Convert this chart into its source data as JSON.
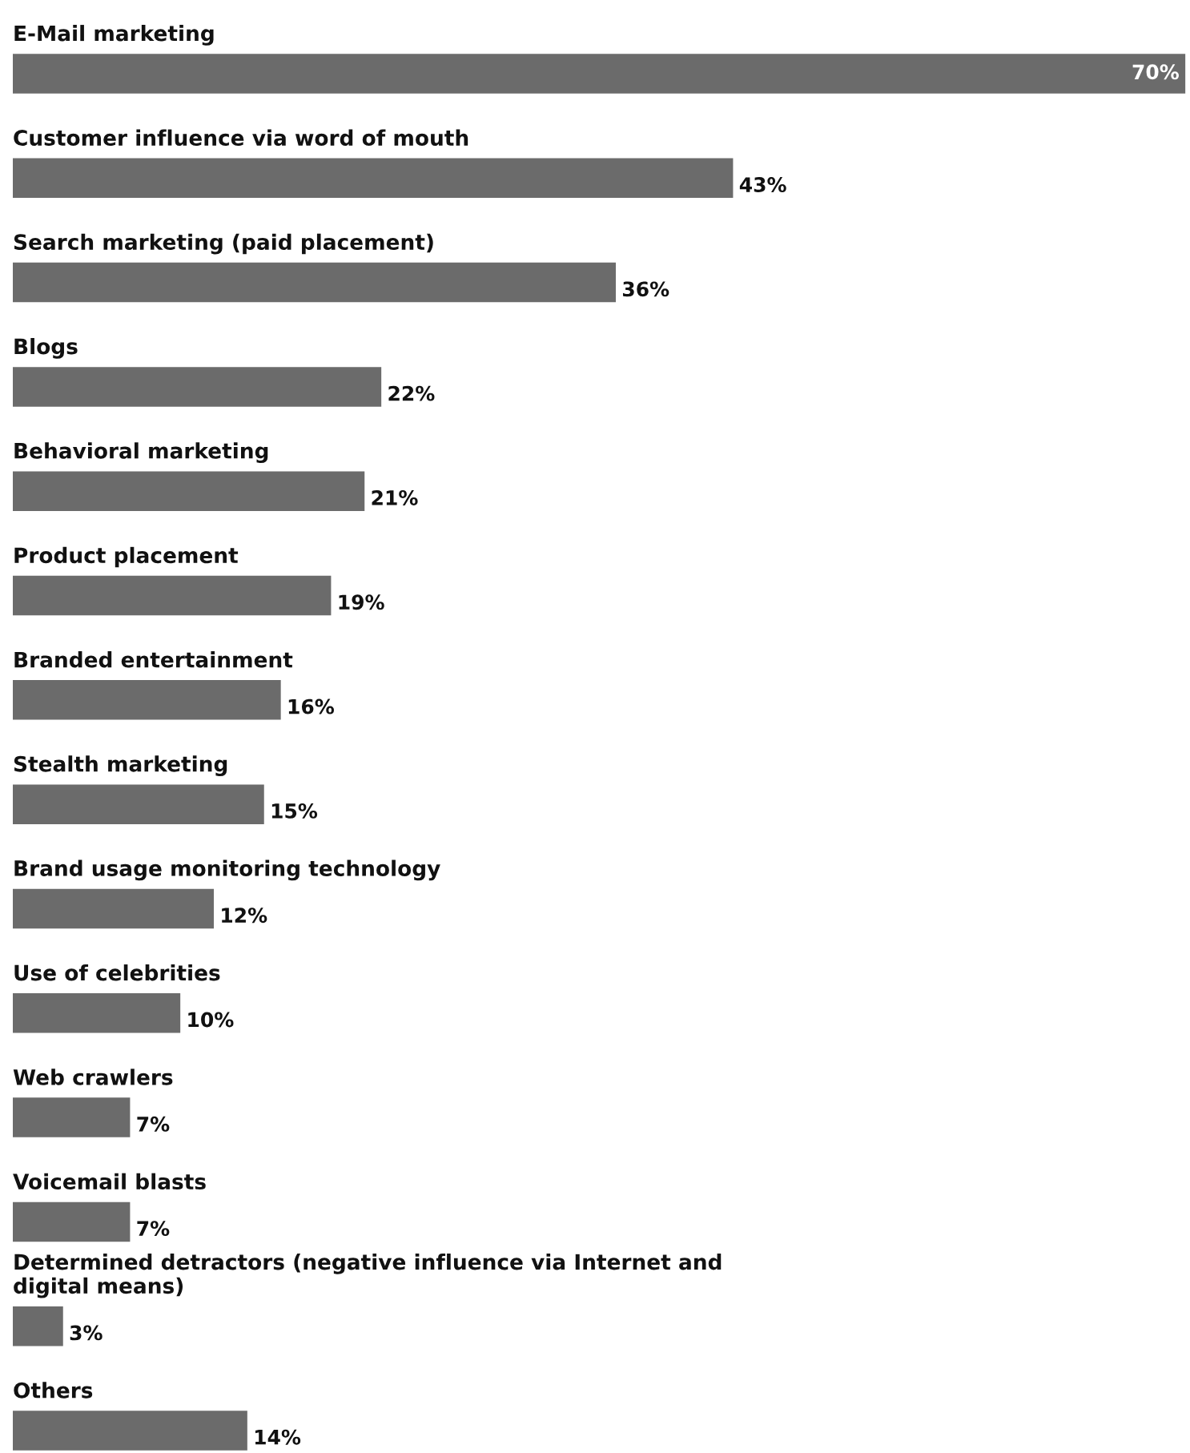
{
  "chart_data": {
    "type": "bar",
    "orientation": "horizontal",
    "data_labels": true,
    "color": "#6b6b6b",
    "categories": [
      "E-Mail marketing",
      "Customer influence via word of mouth",
      "Search marketing (paid placement)",
      "Blogs",
      "Behavioral marketing",
      "Product placement",
      "Branded entertainment",
      "Stealth marketing",
      "Brand usage monitoring technology",
      "Use of celebrities",
      "Web crawlers",
      "Voicemail blasts",
      "Determined detractors (negative influence via Internet and\ndigital means)",
      "Others"
    ],
    "values": [
      70,
      43,
      36,
      22,
      21,
      19,
      16,
      15,
      12,
      10,
      7,
      7,
      3,
      14
    ],
    "value_labels": [
      "70%",
      "43%",
      "36%",
      "22%",
      "21%",
      "19%",
      "16%",
      "15%",
      "12%",
      "10%",
      "7%",
      "7%",
      "3%",
      "14%"
    ]
  }
}
